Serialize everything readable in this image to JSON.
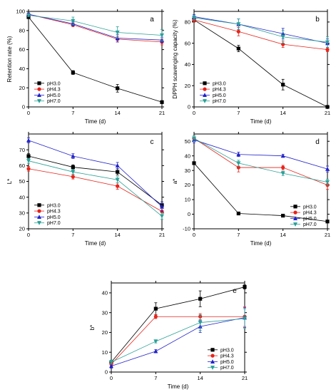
{
  "chart_data": [
    {
      "id": "a",
      "type": "line",
      "panel_label": "a",
      "x": [
        0,
        7,
        14,
        21
      ],
      "xlabel": "Time (d)",
      "ylabel": "Retention rate (%)",
      "xlim": [
        0,
        21
      ],
      "ylim": [
        0,
        100
      ],
      "yticks": [
        0,
        20,
        40,
        60,
        80,
        100
      ],
      "legend_position": "bottom-left",
      "series": [
        {
          "name": "pH3.0",
          "color": "#000000",
          "marker": "square",
          "values": [
            94,
            36,
            19.5,
            5
          ],
          "err": [
            1.5,
            2,
            4,
            1
          ]
        },
        {
          "name": "pH4.3",
          "color": "#e8231a",
          "marker": "circle",
          "values": [
            97,
            86,
            71,
            68
          ],
          "err": [
            1.5,
            2,
            3,
            3
          ]
        },
        {
          "name": "pH5.0",
          "color": "#2222cc",
          "marker": "triangle-up",
          "values": [
            97,
            87,
            72,
            70
          ],
          "err": [
            1.5,
            2,
            4,
            3
          ]
        },
        {
          "name": "pH7.0",
          "color": "#2aa198",
          "marker": "triangle-down",
          "values": [
            96,
            90,
            78,
            75
          ],
          "err": [
            1.5,
            4,
            6,
            6
          ]
        }
      ]
    },
    {
      "id": "b",
      "type": "line",
      "panel_label": "b",
      "x": [
        0,
        7,
        14,
        21
      ],
      "xlabel": "Time (d)",
      "ylabel": "DPPH scavenging capacity (%)",
      "xlim": [
        0,
        21
      ],
      "ylim": [
        0,
        90
      ],
      "yticks": [
        0,
        20,
        40,
        60,
        80
      ],
      "legend_position": "bottom-left",
      "series": [
        {
          "name": "pH3.0",
          "color": "#000000",
          "marker": "square",
          "values": [
            82,
            55,
            21,
            0
          ],
          "err": [
            2,
            3,
            5,
            1
          ]
        },
        {
          "name": "pH4.3",
          "color": "#e8231a",
          "marker": "circle",
          "values": [
            82,
            71,
            59,
            54
          ],
          "err": [
            2,
            4,
            3,
            2
          ]
        },
        {
          "name": "pH5.0",
          "color": "#2222cc",
          "marker": "triangle-up",
          "values": [
            85,
            78,
            69,
            60
          ],
          "err": [
            2,
            5,
            5,
            4
          ]
        },
        {
          "name": "pH7.0",
          "color": "#2aa198",
          "marker": "triangle-down",
          "values": [
            84,
            78,
            66,
            61
          ],
          "err": [
            2,
            5,
            6,
            5
          ]
        }
      ]
    },
    {
      "id": "c",
      "type": "line",
      "panel_label": "c",
      "x": [
        0,
        7,
        14,
        21
      ],
      "xlabel": "Time (d)",
      "ylabel": "L*",
      "xlim": [
        0,
        21
      ],
      "ylim": [
        20,
        80
      ],
      "yticks": [
        20,
        30,
        40,
        50,
        60,
        70
      ],
      "legend_position": "bottom-left",
      "series": [
        {
          "name": "pH3.0",
          "color": "#000000",
          "marker": "square",
          "values": [
            66,
            59,
            56,
            35
          ],
          "err": [
            1.5,
            1.5,
            2,
            2
          ]
        },
        {
          "name": "pH4.3",
          "color": "#e8231a",
          "marker": "circle",
          "values": [
            58,
            53,
            47,
            31
          ],
          "err": [
            1.5,
            1.5,
            2,
            2
          ]
        },
        {
          "name": "pH5.0",
          "color": "#2222cc",
          "marker": "triangle-up",
          "values": [
            76,
            66,
            60,
            34
          ],
          "err": [
            1.5,
            1.5,
            2,
            3
          ]
        },
        {
          "name": "pH7.0",
          "color": "#2aa198",
          "marker": "triangle-down",
          "values": [
            63,
            56,
            51,
            28
          ],
          "err": [
            1.5,
            1.5,
            2,
            2
          ]
        }
      ]
    },
    {
      "id": "d",
      "type": "line",
      "panel_label": "d",
      "x": [
        0,
        7,
        14,
        21
      ],
      "xlabel": "Time (d)",
      "ylabel": "a*",
      "xlim": [
        0,
        21
      ],
      "ylim": [
        -10,
        55
      ],
      "yticks": [
        -10,
        0,
        10,
        20,
        30,
        40,
        50
      ],
      "legend_position": "bottom-right",
      "series": [
        {
          "name": "pH3.0",
          "color": "#000000",
          "marker": "square",
          "values": [
            35,
            0.5,
            -1,
            -5
          ],
          "err": [
            1,
            0.8,
            0.8,
            0.8
          ]
        },
        {
          "name": "pH4.3",
          "color": "#e8231a",
          "marker": "circle",
          "values": [
            52,
            32,
            32,
            20
          ],
          "err": [
            2,
            3,
            1.5,
            3
          ]
        },
        {
          "name": "pH5.0",
          "color": "#2222cc",
          "marker": "triangle-up",
          "values": [
            51,
            41,
            40,
            31
          ],
          "err": [
            2,
            1.5,
            1,
            2
          ]
        },
        {
          "name": "pH7.0",
          "color": "#2aa198",
          "marker": "triangle-down",
          "values": [
            52,
            35,
            28,
            22
          ],
          "err": [
            2,
            2,
            1.5,
            2
          ]
        }
      ]
    },
    {
      "id": "e",
      "type": "line",
      "panel_label": "e",
      "x": [
        0,
        7,
        14,
        21
      ],
      "xlabel": "Time (d)",
      "ylabel": "b*",
      "xlim": [
        0,
        21
      ],
      "ylim": [
        0,
        45
      ],
      "yticks": [
        0,
        10,
        20,
        30,
        40
      ],
      "legend_position": "bottom-right",
      "series": [
        {
          "name": "pH3.0",
          "color": "#000000",
          "marker": "square",
          "values": [
            5,
            32,
            37,
            43
          ],
          "err": [
            1,
            3,
            4,
            1
          ]
        },
        {
          "name": "pH4.3",
          "color": "#e8231a",
          "marker": "circle",
          "values": [
            4,
            28,
            28,
            28
          ],
          "err": [
            1,
            1,
            1.5,
            5
          ]
        },
        {
          "name": "pH5.0",
          "color": "#2222cc",
          "marker": "triangle-up",
          "values": [
            3,
            10.5,
            23,
            27.5
          ],
          "err": [
            1,
            0.8,
            3,
            5
          ]
        },
        {
          "name": "pH7.0",
          "color": "#2aa198",
          "marker": "triangle-down",
          "values": [
            5,
            15.5,
            25,
            27
          ],
          "err": [
            1,
            0.8,
            4,
            5
          ]
        }
      ]
    }
  ]
}
